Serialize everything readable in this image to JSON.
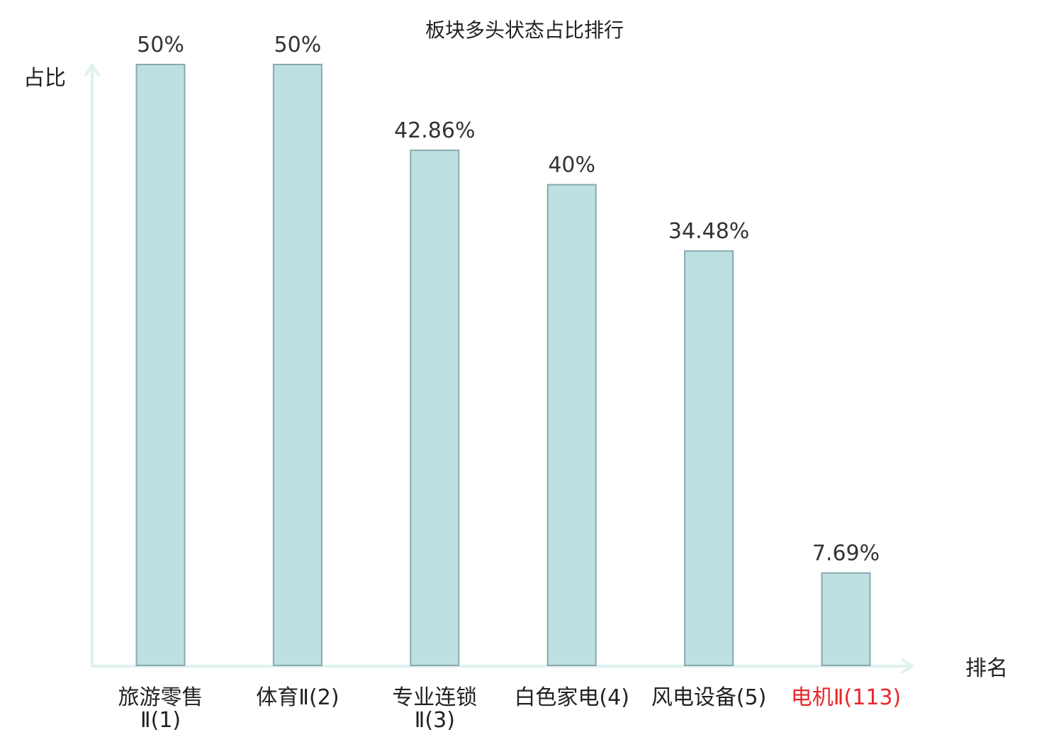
{
  "chart_data": {
    "type": "bar",
    "title": "板块多头状态占比排行",
    "ylabel": "占比",
    "xlabel": "排名",
    "ylim": [
      0,
      50
    ],
    "unit": "%",
    "categories": [
      [
        "旅游零售",
        "Ⅱ(1)"
      ],
      [
        "体育Ⅱ(2)"
      ],
      [
        "专业连锁",
        "Ⅱ(3)"
      ],
      [
        "白色家电(4)"
      ],
      [
        "风电设备(5)"
      ],
      [
        "电机Ⅱ(113)"
      ]
    ],
    "values": [
      50,
      50,
      42.86,
      40,
      34.48,
      7.69
    ],
    "value_labels": [
      "50%",
      "50%",
      "42.86%",
      "40%",
      "34.48%",
      "7.69%"
    ],
    "highlight_index": 5,
    "colors": {
      "bar_fill": "#bde0e3",
      "bar_stroke": "#8aa9ad",
      "axis": "#dff2ef",
      "highlight_text": "#e8262a",
      "text": "#222222"
    },
    "grid": false
  }
}
